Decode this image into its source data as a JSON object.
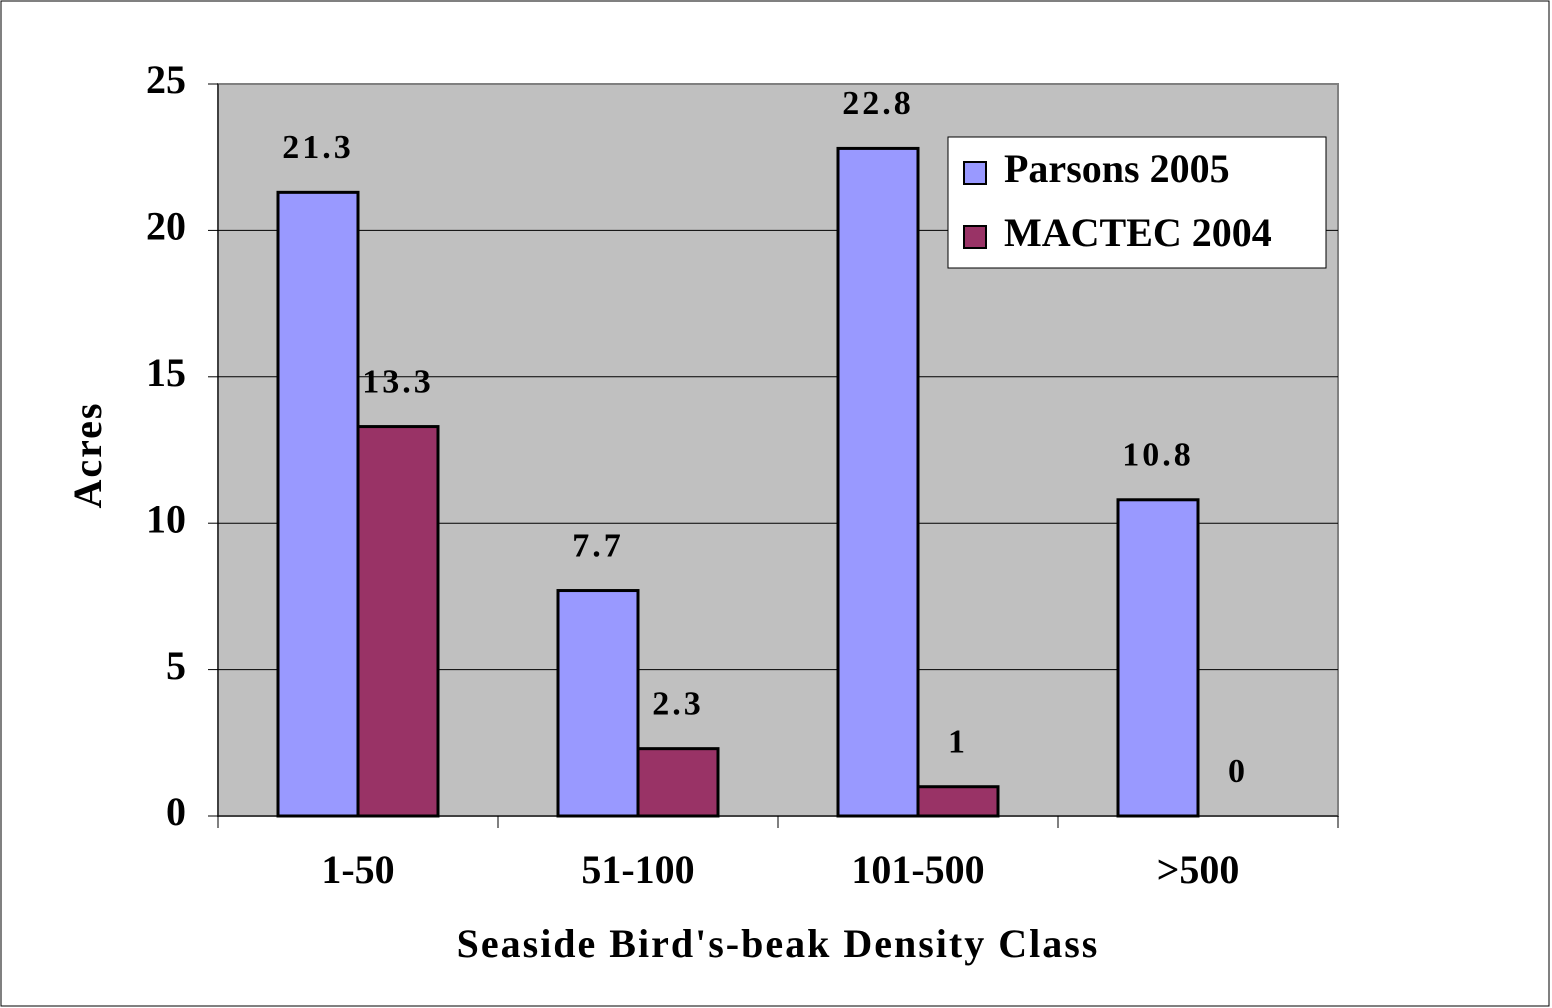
{
  "chart_data": {
    "type": "bar",
    "xlabel": "Seaside Bird's-beak Density Class",
    "ylabel": "Acres",
    "categories": [
      "1-50",
      "51-100",
      "101-500",
      ">500"
    ],
    "series": [
      {
        "name": "Parsons 2005",
        "color": "#9999ff",
        "values": [
          21.3,
          7.7,
          22.8,
          10.8
        ]
      },
      {
        "name": "MACTEC 2004",
        "color": "#993366",
        "values": [
          13.3,
          2.3,
          1,
          0
        ]
      }
    ],
    "ylim": [
      0,
      25
    ],
    "yticks": [
      0,
      5,
      10,
      15,
      20,
      25
    ],
    "grid": true,
    "legend": "upper right"
  }
}
